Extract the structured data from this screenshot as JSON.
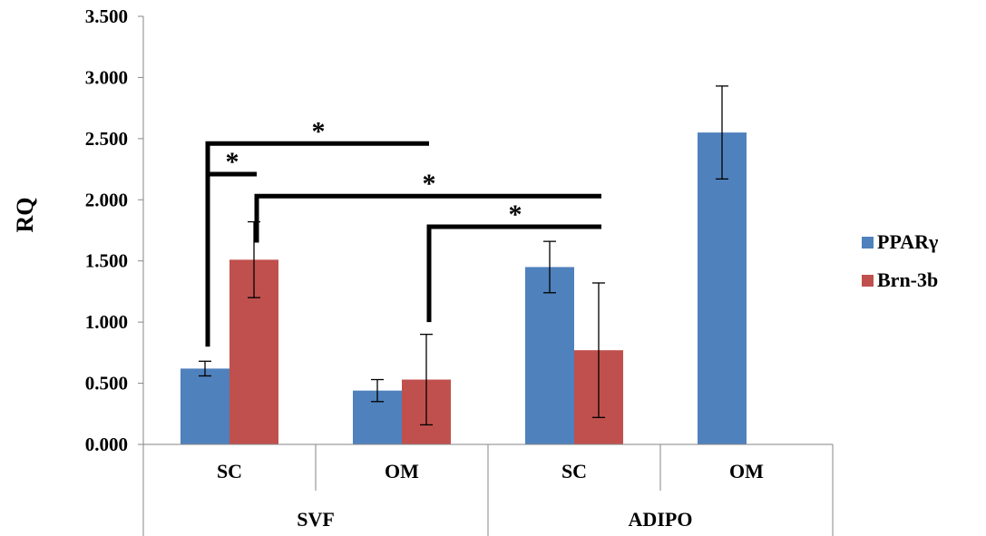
{
  "chart_data": {
    "type": "bar",
    "ylabel": "RQ",
    "ylim": [
      0,
      3.5
    ],
    "yticks": [
      "0.000",
      "0.500",
      "1.000",
      "1.500",
      "2.000",
      "2.500",
      "3.000",
      "3.500"
    ],
    "grid": false,
    "legend_position": "right",
    "categories": [
      "SC",
      "OM",
      "SC",
      "OM"
    ],
    "groups": [
      {
        "label": "SVF",
        "span": [
          0,
          1
        ]
      },
      {
        "label": "ADIPO",
        "span": [
          2,
          3
        ]
      }
    ],
    "series": [
      {
        "name": "PPARγ",
        "color": "#4F81BD",
        "values": [
          0.62,
          0.44,
          1.45,
          2.55
        ],
        "errors": [
          0.06,
          0.09,
          0.21,
          0.38
        ]
      },
      {
        "name": "Brn-3b",
        "color": "#C0504D",
        "values": [
          1.51,
          0.53,
          0.77,
          null
        ],
        "errors": [
          0.31,
          0.37,
          0.55,
          null
        ]
      }
    ],
    "significance": [
      {
        "label": "*",
        "from": {
          "cat": 0,
          "series": 0
        },
        "to": {
          "cat": 1,
          "series": 1
        }
      },
      {
        "label": "*",
        "from": {
          "cat": 0,
          "series": 0
        },
        "to": {
          "cat": 0,
          "series": 1
        }
      },
      {
        "label": "*",
        "from": {
          "cat": 0,
          "series": 1
        },
        "to": {
          "cat": 2,
          "series": 1
        }
      },
      {
        "label": "*",
        "from": {
          "cat": 1,
          "series": 1
        },
        "to": {
          "cat": 2,
          "series": 1
        }
      }
    ]
  }
}
